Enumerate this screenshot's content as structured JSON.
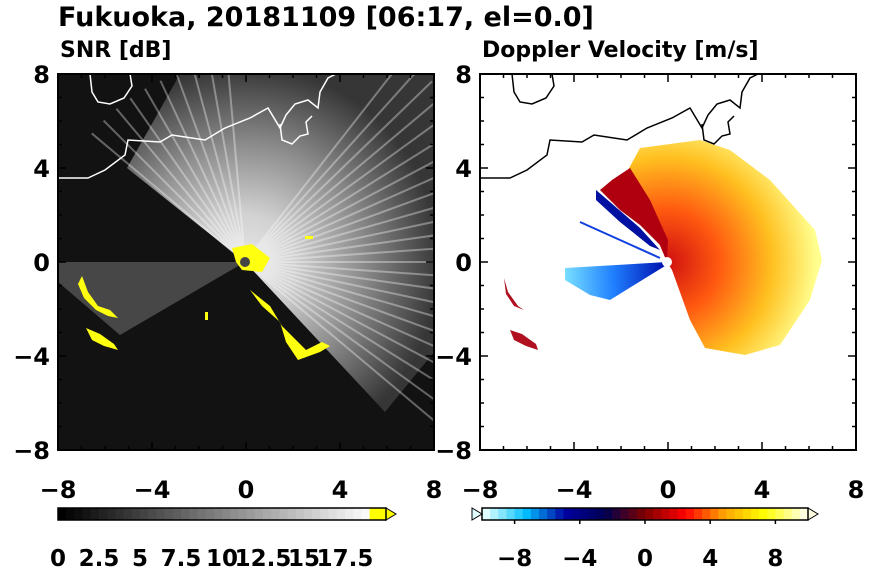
{
  "title": "Fukuoka, 20181109 [06:17, el=0.0]",
  "chart_data": [
    {
      "type": "heatmap",
      "title": "SNR [dB]",
      "xlim": [
        -8,
        8
      ],
      "ylim": [
        -8,
        8
      ],
      "xticks": [
        "−8",
        "−4",
        "0",
        "4",
        "8"
      ],
      "yticks": [
        "8",
        "4",
        "0",
        "−4",
        "−8"
      ],
      "colorbar": {
        "ticks": [
          "0",
          "2.5",
          "5",
          "7.5",
          "10",
          "12.5",
          "15",
          "17.5"
        ],
        "range": [
          0,
          20
        ],
        "colors": [
          "#000000",
          "#ffffff",
          "#ffff00"
        ]
      },
      "features": [
        "coastline",
        "radar-echo",
        "highlight-yellow"
      ]
    },
    {
      "type": "heatmap",
      "title": "Doppler Velocity [m/s]",
      "xlim": [
        -8,
        8
      ],
      "ylim": [
        -8,
        8
      ],
      "xticks": [
        "−8",
        "−4",
        "0",
        "4",
        "8"
      ],
      "yticks": [
        "8",
        "4",
        "0",
        "−4",
        "−8"
      ],
      "colorbar": {
        "ticks": [
          "−8",
          "−4",
          "0",
          "4",
          "8"
        ],
        "range": [
          -10,
          10
        ],
        "colors": [
          "#e0ffff",
          "#00bfff",
          "#0000a0",
          "#000050",
          "#800000",
          "#ff0000",
          "#ffa500",
          "#ffff00",
          "#ffffe0"
        ]
      },
      "features": [
        "coastline",
        "velocity-field"
      ]
    }
  ]
}
